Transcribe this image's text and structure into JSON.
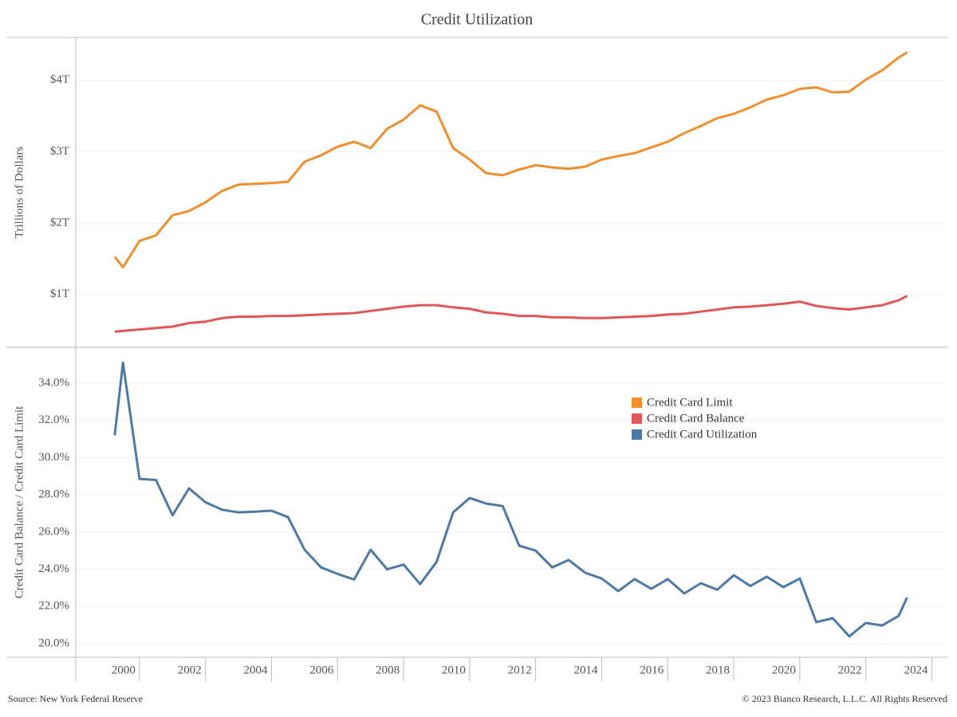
{
  "title": "Credit Utilization",
  "source": "Source: New York Federal Reserve",
  "copyright": "© 2023 Bianco Research, L.L.C. All Rights Reserved",
  "legend_position": "right",
  "chart_data": [
    {
      "type": "line",
      "y_label": "Trillions of Dollars",
      "x": [
        1999.25,
        1999.5,
        2000,
        2000.5,
        2001,
        2001.5,
        2002,
        2002.5,
        2003,
        2003.5,
        2004,
        2004.5,
        2005,
        2005.5,
        2006,
        2006.5,
        2007,
        2007.5,
        2008,
        2008.5,
        2009,
        2009.5,
        2010,
        2010.5,
        2011,
        2011.5,
        2012,
        2012.5,
        2013,
        2013.5,
        2014,
        2014.5,
        2015,
        2015.5,
        2016,
        2016.5,
        2017,
        2017.5,
        2018,
        2018.5,
        2019,
        2019.5,
        2020,
        2020.5,
        2021,
        2021.5,
        2022,
        2022.5,
        2023,
        2023.25
      ],
      "series": [
        {
          "name": "Credit Card Limit",
          "color": "#f28e2b",
          "values": [
            1.53,
            1.38,
            1.75,
            1.83,
            2.11,
            2.17,
            2.29,
            2.45,
            2.54,
            2.55,
            2.56,
            2.58,
            2.86,
            2.95,
            3.07,
            3.14,
            3.05,
            3.32,
            3.45,
            3.65,
            3.56,
            3.05,
            2.89,
            2.7,
            2.67,
            2.75,
            2.81,
            2.78,
            2.76,
            2.79,
            2.89,
            2.94,
            2.98,
            3.06,
            3.14,
            3.26,
            3.36,
            3.47,
            3.53,
            3.62,
            3.73,
            3.79,
            3.88,
            3.9,
            3.83,
            3.84,
            4.01,
            4.14,
            4.32,
            4.39
          ]
        },
        {
          "name": "Credit Card Balance",
          "color": "#e15759",
          "values": [
            0.48,
            0.49,
            0.51,
            0.53,
            0.55,
            0.6,
            0.62,
            0.67,
            0.69,
            0.69,
            0.7,
            0.7,
            0.71,
            0.72,
            0.73,
            0.74,
            0.77,
            0.8,
            0.83,
            0.85,
            0.85,
            0.82,
            0.8,
            0.75,
            0.73,
            0.7,
            0.7,
            0.68,
            0.68,
            0.67,
            0.67,
            0.68,
            0.69,
            0.7,
            0.72,
            0.73,
            0.76,
            0.79,
            0.82,
            0.83,
            0.85,
            0.87,
            0.9,
            0.84,
            0.81,
            0.79,
            0.82,
            0.85,
            0.92,
            0.98
          ]
        }
      ],
      "xlim": [
        1998.07,
        2024.4
      ],
      "ylim": [
        0.26,
        4.6
      ],
      "yticks": [
        {
          "value": 1,
          "label": "$1T"
        },
        {
          "value": 2,
          "label": "$2T"
        },
        {
          "value": 3,
          "label": "$3T"
        },
        {
          "value": 4,
          "label": "$4T"
        }
      ],
      "grid": true
    },
    {
      "type": "line",
      "y_label": "Credit Card Balance / Credit Card Limit",
      "x": [
        1999.25,
        1999.5,
        2000,
        2000.5,
        2001,
        2001.5,
        2002,
        2002.5,
        2003,
        2003.5,
        2004,
        2004.5,
        2005,
        2005.5,
        2006,
        2006.5,
        2007,
        2007.5,
        2008,
        2008.5,
        2009,
        2009.5,
        2010,
        2010.5,
        2011,
        2011.5,
        2012,
        2012.5,
        2013,
        2013.5,
        2014,
        2014.5,
        2015,
        2015.5,
        2016,
        2016.5,
        2017,
        2017.5,
        2018,
        2018.5,
        2019,
        2019.5,
        2020,
        2020.5,
        2021,
        2021.5,
        2022,
        2022.5,
        2023,
        2023.25
      ],
      "series": [
        {
          "name": "Credit Card Utilization",
          "color": "#4e79a7",
          "values": [
            31.2,
            35.1,
            28.86,
            28.8,
            26.9,
            28.35,
            27.6,
            27.2,
            27.06,
            27.1,
            27.15,
            26.8,
            25.05,
            24.1,
            23.75,
            23.45,
            25.05,
            24.0,
            24.25,
            23.2,
            24.4,
            27.06,
            27.83,
            27.53,
            27.4,
            25.27,
            25.0,
            24.1,
            24.5,
            23.81,
            23.5,
            22.83,
            23.47,
            22.95,
            23.47,
            22.7,
            23.25,
            22.9,
            23.68,
            23.1,
            23.6,
            23.04,
            23.5,
            21.16,
            21.37,
            20.39,
            21.11,
            20.98,
            21.5,
            22.48
          ]
        }
      ],
      "xlim": [
        1998.07,
        2024.4
      ],
      "ylim": [
        19.27,
        35.93
      ],
      "xticks": [
        2000,
        2002,
        2004,
        2006,
        2008,
        2010,
        2012,
        2014,
        2016,
        2018,
        2020,
        2022,
        2024
      ],
      "yticks": [
        {
          "value": 20,
          "label": "20.0%"
        },
        {
          "value": 22,
          "label": "22.0%"
        },
        {
          "value": 24,
          "label": "24.0%"
        },
        {
          "value": 26,
          "label": "26.0%"
        },
        {
          "value": 28,
          "label": "28.0%"
        },
        {
          "value": 30,
          "label": "30.0%"
        },
        {
          "value": 32,
          "label": "32.0%"
        },
        {
          "value": 34,
          "label": "34.0%"
        }
      ],
      "grid": true
    }
  ]
}
